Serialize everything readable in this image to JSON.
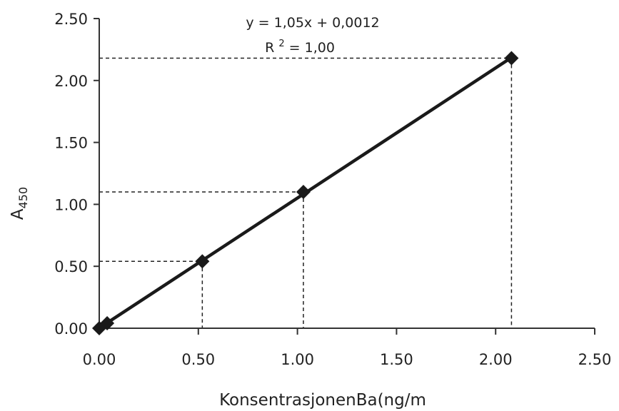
{
  "chart_data": {
    "type": "scatter",
    "title": "",
    "xlabel": "KonsentrasjonenBa(ng/m",
    "ylabel_main": "A",
    "ylabel_sub": "450",
    "xlim": [
      0,
      2.5
    ],
    "ylim": [
      0,
      2.5
    ],
    "x_ticks": [
      "0.00",
      "0.50",
      "1.00",
      "1.50",
      "2.00",
      "2.50"
    ],
    "y_ticks": [
      "0.00",
      "0.50",
      "1.00",
      "1.50",
      "2.00",
      "2.50"
    ],
    "grid": false,
    "series": [
      {
        "x": [
          0.0,
          0.04,
          0.52,
          1.03,
          2.08
        ],
        "y": [
          0.0,
          0.04,
          0.54,
          1.1,
          2.18
        ],
        "marker": "diamond",
        "color": "#1a1a1a"
      }
    ],
    "trendline": {
      "slope": 1.05,
      "intercept": 0.0012,
      "equation": "y = 1,05x + 0,0012",
      "r2_prefix": "R",
      "r2_exponent": "2",
      "r2_value": " = 1,00"
    },
    "guide_points": [
      {
        "x": 0.52,
        "y": 0.54
      },
      {
        "x": 1.03,
        "y": 1.1
      },
      {
        "x": 2.08,
        "y": 2.18
      }
    ]
  }
}
